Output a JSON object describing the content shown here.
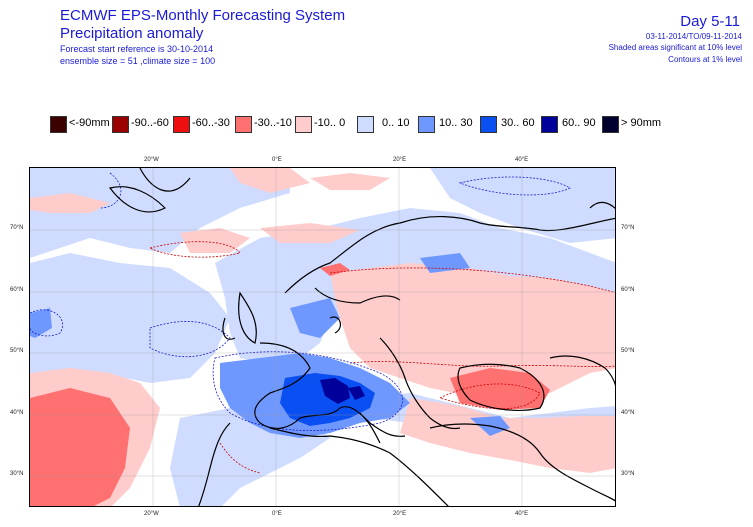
{
  "header": {
    "title": "ECMWF EPS-Monthly Forecasting System",
    "subtitle": "Precipitation anomaly",
    "forecast_ref": "Forecast start reference is 30-10-2014",
    "ensemble": "ensemble size = 51 ,climate size = 100",
    "day_range": "Day 5-11",
    "date_range": "03-11-2014/TO/09-11-2014",
    "shaded_note": "Shaded areas significant at 10% level",
    "contour_note": "Contours at 1% level"
  },
  "legend": [
    {
      "label": "<-90mm",
      "color": "#3b0000"
    },
    {
      "label": "-90..-60",
      "color": "#9b0000"
    },
    {
      "label": "-60..-30",
      "color": "#ee1010"
    },
    {
      "label": "-30..-10",
      "color": "#ff7070"
    },
    {
      "label": "-10.. 0",
      "color": "#ffcccc"
    },
    {
      "label": "0.. 10",
      "color": "#cfdcff"
    },
    {
      "label": "10.. 30",
      "color": "#6f98ff"
    },
    {
      "label": "30.. 60",
      "color": "#0a4ff2"
    },
    {
      "label": "60.. 90",
      "color": "#00009a"
    },
    {
      "label": "> 90mm",
      "color": "#00002e"
    }
  ],
  "axes": {
    "top_lon": [
      "20°W",
      "0°E",
      "20°E",
      "40°E"
    ],
    "bottom_lon": [
      "20°W",
      "0°E",
      "20°E",
      "40°E"
    ],
    "left_lat": [
      "70°N",
      "60°N",
      "50°N",
      "40°N",
      "30°N"
    ],
    "right_lat": [
      "70°N",
      "60°N",
      "50°N",
      "40°N",
      "30°N"
    ]
  }
}
